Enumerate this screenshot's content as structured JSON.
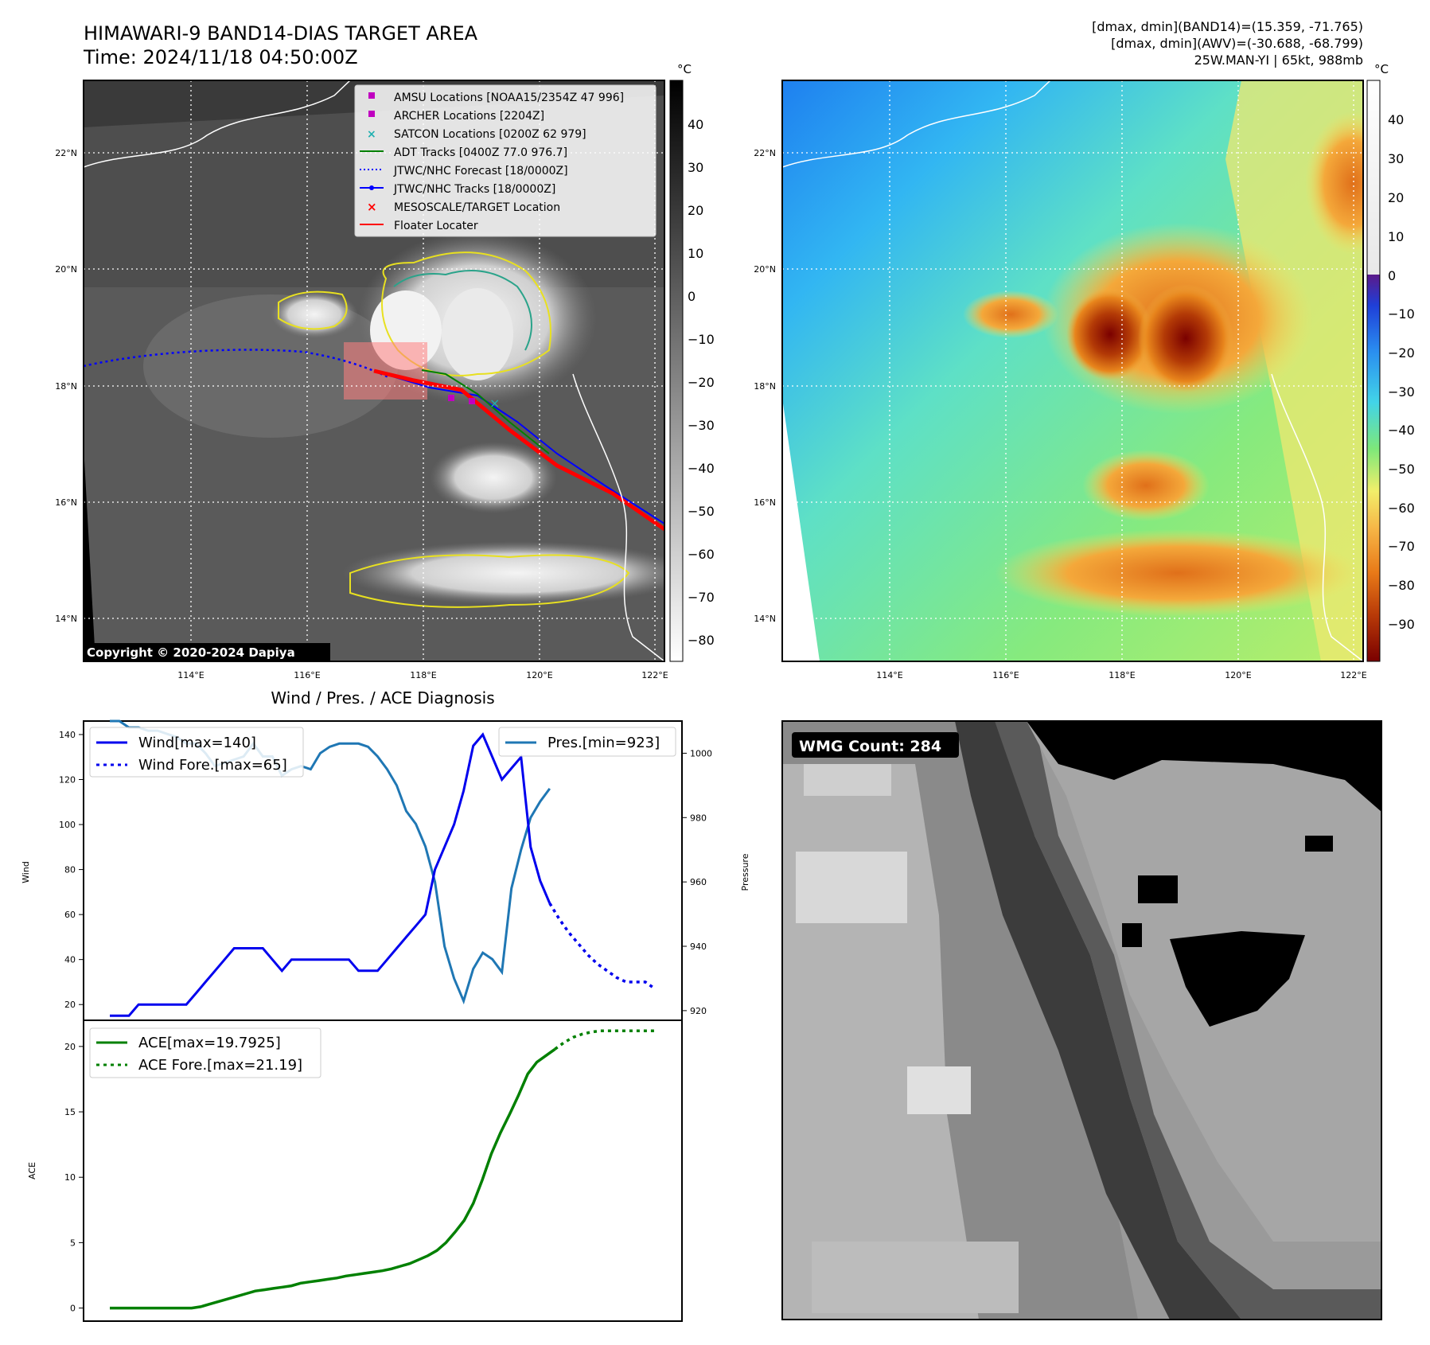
{
  "header": {
    "title": "HIMAWARI-9 BAND14-DIAS TARGET AREA",
    "time": "Time: 2024/11/18 04:50:00Z",
    "info1": "[dmax, dmin](BAND14)=(15.359, -71.765)",
    "info2": "[dmax, dmin](AWV)=(-30.688, -68.799)",
    "info3": "25W.MAN-YI | 65kt, 988mb",
    "copyright": "Copyright © 2020-2024 Dapiya",
    "wmg_count": "WMG Count: 284",
    "diag_title": "Wind / Pres. / ACE Diagnosis"
  },
  "colors": {
    "wind": "#0000ee",
    "pres": "#1f77b4",
    "ace": "#008000",
    "track_red": "#ff0000",
    "grid": "#ffffff"
  },
  "map": {
    "lat_labels": [
      "22°N",
      "20°N",
      "18°N",
      "16°N",
      "14°N"
    ],
    "lon_labels": [
      "114°E",
      "116°E",
      "118°E",
      "120°E",
      "122°E"
    ],
    "legend": [
      {
        "label": "AMSU Locations [NOAA15/2354Z 47 996]",
        "icon": "magenta-square"
      },
      {
        "label": "ARCHER Locations [2204Z]",
        "icon": "magenta-square"
      },
      {
        "label": "SATCON Locations [0200Z 62 979]",
        "icon": "cyan-x"
      },
      {
        "label": "ADT Tracks [0400Z 77.0 976.7]",
        "icon": "green-line"
      },
      {
        "label": "JTWC/NHC Forecast [18/0000Z]",
        "icon": "blue-dotted-line"
      },
      {
        "label": "JTWC/NHC Tracks [18/0000Z]",
        "icon": "blue-dot-line"
      },
      {
        "label": "MESOSCALE/TARGET Location",
        "icon": "red-x"
      },
      {
        "label": "Floater Locater",
        "icon": "red-line"
      }
    ],
    "cbar_unit": "°C",
    "cbar_gray_ticks": [
      "40",
      "30",
      "20",
      "10",
      "0",
      "−10",
      "−20",
      "−30",
      "−40",
      "−50",
      "−60",
      "−70",
      "−80"
    ],
    "cbar_color_ticks": [
      "40",
      "30",
      "20",
      "10",
      "0",
      "−10",
      "−20",
      "−30",
      "−40",
      "−50",
      "−60",
      "−70",
      "−80",
      "−90"
    ]
  },
  "chart_data": [
    {
      "type": "line",
      "title": "Wind / Pres. / ACE Diagnosis",
      "ylabel": "Wind",
      "ylabel_right": "Pressure",
      "ylim": [
        13,
        146
      ],
      "ylim_right": [
        917,
        1010
      ],
      "y_ticks": [
        "20",
        "40",
        "60",
        "80",
        "100",
        "120",
        "140"
      ],
      "y_ticks_right": [
        "920",
        "940",
        "960",
        "980",
        "1000"
      ],
      "series": [
        {
          "name": "Wind[max=140]",
          "style": "solid",
          "values": [
            15,
            15,
            15,
            20,
            20,
            20,
            20,
            20,
            20,
            25,
            30,
            35,
            40,
            45,
            45,
            45,
            45,
            40,
            35,
            40,
            40,
            40,
            40,
            40,
            40,
            40,
            35,
            35,
            35,
            40,
            45,
            50,
            55,
            60,
            80,
            90,
            100,
            115,
            135,
            140,
            130,
            120,
            125,
            130,
            90,
            75,
            65
          ]
        },
        {
          "name": "Wind Fore.[max=65]",
          "style": "dotted",
          "values": [
            65,
            58,
            52,
            47,
            42,
            38,
            35,
            32,
            30,
            30,
            30,
            27
          ]
        },
        {
          "name": "Pres.[min=923]",
          "style": "solid",
          "axis": "right",
          "values": [
            1010,
            1010,
            1008,
            1008,
            1007,
            1007,
            1006,
            1005,
            1003,
            1003,
            1000,
            996,
            997,
            998,
            999,
            1003,
            999,
            999,
            993,
            995,
            996,
            995,
            1000,
            1002,
            1003,
            1003,
            1003,
            1002,
            999,
            995,
            990,
            982,
            978,
            971,
            960,
            940,
            930,
            923,
            933,
            938,
            936,
            932,
            958,
            970,
            980,
            985,
            989
          ]
        }
      ]
    },
    {
      "type": "line",
      "ylabel": "ACE",
      "ylim": [
        -1,
        22
      ],
      "y_ticks": [
        "0",
        "5",
        "10",
        "15",
        "20"
      ],
      "series": [
        {
          "name": "ACE[max=19.7925]",
          "style": "solid",
          "values": [
            0,
            0,
            0,
            0,
            0,
            0,
            0,
            0,
            0,
            0,
            0.1,
            0.3,
            0.5,
            0.7,
            0.9,
            1.1,
            1.3,
            1.4,
            1.5,
            1.6,
            1.7,
            1.9,
            2.0,
            2.1,
            2.2,
            2.3,
            2.45,
            2.55,
            2.65,
            2.75,
            2.85,
            3.0,
            3.2,
            3.4,
            3.7,
            4.0,
            4.4,
            5.0,
            5.8,
            6.7,
            8.0,
            9.8,
            11.8,
            13.4,
            14.8,
            16.3,
            17.9,
            18.8,
            19.3,
            19.7925
          ]
        },
        {
          "name": "ACE Fore.[max=21.19]",
          "style": "dotted",
          "values": [
            19.8,
            20.3,
            20.7,
            20.95,
            21.1,
            21.19,
            21.19,
            21.19,
            21.19,
            21.19,
            21.19,
            21.19
          ]
        }
      ]
    }
  ]
}
